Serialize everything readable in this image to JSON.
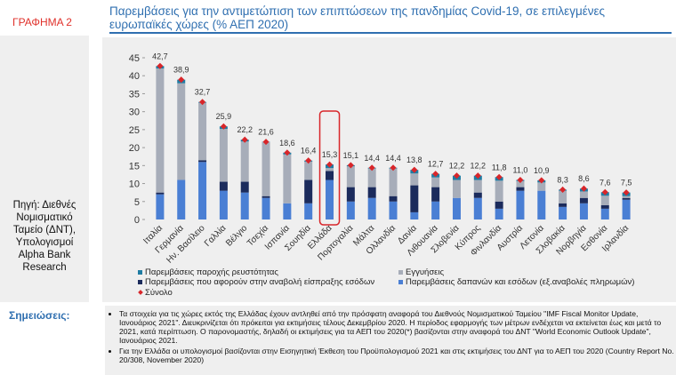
{
  "header": {
    "figure": "ΓΡΑΦΗΜΑ 2",
    "title": "Παρεμβάσεις για την αντιμετώπιση των επιπτώσεων της πανδημίας Covid-19, σε επιλεγμένες ευρωπαϊκές χώρες (% ΑΕΠ 2020)"
  },
  "source": "Πηγή: Διεθνές Νομισματικό Ταμείο (ΔΝΤ), Υπολογισμοί Alpha Bank Research",
  "chart_data": {
    "type": "stacked_bar",
    "categories": [
      "Ιταλία",
      "Γερμανία",
      "Ην. Βασίλειο",
      "Γαλλία",
      "Βέλγιο",
      "Τσεχία",
      "Ισπανία",
      "Σουηδία",
      "Ελλάδα",
      "Πορτογαλία",
      "Μάλτα",
      "Ολλανδία",
      "Δανία",
      "Λιθουανία",
      "Σλοβενία",
      "Κύπρος",
      "Φινλανδία",
      "Αυστρία",
      "Λετονία",
      "Σλοβακία",
      "Νορβηγία",
      "Εσθονία",
      "Ιρλανδία"
    ],
    "series": [
      {
        "name": "Παρεμβάσεις δαπανών και εσόδων (εξ.αναβολές πληρωμών)",
        "color": "#4a7fd4",
        "values": [
          7,
          11,
          16,
          8,
          7.5,
          6,
          4.5,
          4.5,
          11,
          5,
          6,
          5,
          2,
          5,
          6,
          6,
          3,
          8,
          8,
          3.5,
          4.5,
          3,
          5.5
        ]
      },
      {
        "name": "Παρεμβάσεις που αφορούν στην αναβολή είσπραξης εσόδων",
        "color": "#1b2b5c",
        "values": [
          0.5,
          0,
          0.5,
          2.5,
          3,
          0.5,
          0,
          6.5,
          2.5,
          4,
          3,
          1.5,
          7.5,
          4,
          0,
          1.5,
          2,
          1,
          0,
          1,
          1.5,
          1,
          0.5
        ]
      },
      {
        "name": "Εγγυήσεις",
        "color": "#a7adb9",
        "values": [
          34.5,
          26.9,
          16,
          14.7,
          11.2,
          15,
          13.6,
          5.1,
          0.8,
          5.8,
          5.2,
          7.7,
          3.3,
          2.7,
          5,
          3.5,
          5.8,
          1.7,
          2.3,
          3.5,
          1.8,
          2.6,
          0.5
        ]
      },
      {
        "name": "Παρεμβάσεις παροχής ρευστότητας",
        "color": "#1f7ca3",
        "values": [
          0.7,
          1,
          0.2,
          0.7,
          0.5,
          0.1,
          0.5,
          0.3,
          1,
          0.3,
          0.2,
          0.2,
          1,
          1,
          1.2,
          1.2,
          1,
          0.3,
          0.6,
          0.3,
          0.8,
          1,
          1
        ]
      }
    ],
    "total": {
      "name": "Σύνολο",
      "color": "#d8262a",
      "values": [
        42.7,
        38.9,
        32.7,
        25.9,
        22.2,
        21.6,
        18.6,
        16.4,
        15.3,
        15.1,
        14.4,
        14.4,
        13.8,
        12.7,
        12.2,
        12.2,
        11.8,
        11.0,
        10.9,
        8.3,
        8.6,
        7.6,
        7.5
      ],
      "value_labels": [
        "42,7",
        "38,9",
        "32,7",
        "25,9",
        "22,2",
        "21,6",
        "18,6",
        "16,4",
        "15,3",
        "15,1",
        "14,4",
        "14,4",
        "13,8",
        "12,7",
        "12,2",
        "12,2",
        "11,8",
        "11,0",
        "10,9",
        "8,3",
        "8,6",
        "7,6",
        "7,5"
      ]
    },
    "ylim": [
      0,
      45
    ],
    "yticks": [
      0,
      5,
      10,
      15,
      20,
      25,
      30,
      35,
      40,
      45
    ]
  },
  "notes": {
    "heading": "Σημειώσεις:",
    "items": [
      "Τα στοιχεία για τις χώρες εκτός της Ελλάδας έχουν αντληθεί από την πρόσφατη αναφορά του Διεθνούς Νομισματικού Ταμείου \"IMF Fiscal Monitor Update, Ιανουάριος 2021\". Διευκρινίζεται ότι πρόκειται για εκτιμήσεις τέλους Δεκεμβρίου 2020. Η περίοδος εφαρμογής των μέτρων ενδέχεται να εκτείνεται έως και μετά το 2021, κατά περίπτωση. Ο παρονομαστής, δηλαδή οι εκτιμήσεις για τα ΑΕΠ του 2020(*) βασίζονται στην αναφορά του ΔΝΤ \"World Economic Outlook Update\", Ιανουάριος 2021.",
      "Για την Ελλάδα οι υπολογισμοί βασίζονται στην Εισηγητική Έκθεση του Προϋπολογισμού 2021 και στις εκτιμήσεις του ΔΝΤ για το ΑΕΠ του 2020 (Country Report No. 20/308, November 2020)"
    ]
  }
}
